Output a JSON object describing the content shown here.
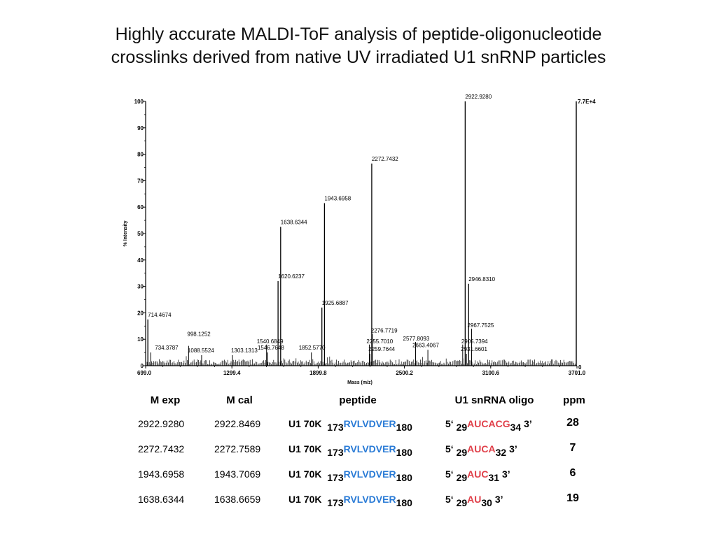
{
  "title": {
    "line1": "Highly accurate MALDI-ToF analysis of peptide-oligonucleotide",
    "line2": "crosslinks derived from native UV irradiated U1 snRNP particles"
  },
  "chart_data": {
    "type": "line",
    "xlabel": "Mass (m/z)",
    "ylabel": "% Intensity",
    "xlim": [
      699.0,
      3701.0
    ],
    "ylim": [
      0,
      100
    ],
    "x_ticks": [
      "699.0",
      "1299.4",
      "1899.8",
      "2500.2",
      "3100.6",
      "3701.0"
    ],
    "y_ticks": [
      0,
      10,
      20,
      30,
      40,
      50,
      60,
      70,
      80,
      90,
      100
    ],
    "max_intensity_label": "7.7E+4",
    "end_value_label": "0",
    "grid": false,
    "peaks": [
      {
        "x": 714.4674,
        "y": 17.5,
        "label": "714.4674"
      },
      {
        "x": 734.3787,
        "y": 5.0,
        "label": "734.3787"
      },
      {
        "x": 998.1252,
        "y": 7.5,
        "label": "998.1252"
      },
      {
        "x": 1088.5524,
        "y": 4.0,
        "label": "1088.5524"
      },
      {
        "x": 1303.1313,
        "y": 4.0,
        "label": "1303.1313"
      },
      {
        "x": 1540.6849,
        "y": 8.0,
        "label": "1540.6849"
      },
      {
        "x": 1546.7648,
        "y": 5.0,
        "label": "1546.7648"
      },
      {
        "x": 1620.6237,
        "y": 32.0,
        "label": "1620.6237"
      },
      {
        "x": 1638.6344,
        "y": 52.5,
        "label": "1638.6344"
      },
      {
        "x": 1852.577,
        "y": 5.0,
        "label": "1852.5770"
      },
      {
        "x": 1925.6887,
        "y": 22.0,
        "label": "1925.6887"
      },
      {
        "x": 1943.6958,
        "y": 61.5,
        "label": "1943.6958"
      },
      {
        "x": 2255.701,
        "y": 8.0,
        "label": "2255.7010"
      },
      {
        "x": 2259.7644,
        "y": 4.5,
        "label": "2259.7644"
      },
      {
        "x": 2272.7432,
        "y": 76.5,
        "label": "2272.7432"
      },
      {
        "x": 2276.7719,
        "y": 12.0,
        "label": "2276.7719"
      },
      {
        "x": 2577.8093,
        "y": 9.0,
        "label": "2577.8093"
      },
      {
        "x": 2663.4067,
        "y": 6.0,
        "label": "2663.4067"
      },
      {
        "x": 2905.7394,
        "y": 8.0,
        "label": "2905.7394"
      },
      {
        "x": 2922.928,
        "y": 100.0,
        "label": "2922.9280"
      },
      {
        "x": 2931.6601,
        "y": 4.5,
        "label": "2931.6601"
      },
      {
        "x": 2946.831,
        "y": 31.0,
        "label": "2946.8310"
      },
      {
        "x": 2967.7525,
        "y": 14.0,
        "label": "2967.7525"
      }
    ]
  },
  "table": {
    "headers": {
      "m_exp": "M exp",
      "m_cal": "M cal",
      "peptide": "peptide",
      "oligo": "U1 snRNA oligo",
      "ppm": "ppm"
    },
    "rows": [
      {
        "m_exp": "2922.9280",
        "m_cal": "2922.8469",
        "protein": "U1 70K",
        "pep_start": "173",
        "pep_seq": "RVLVDVER",
        "pep_end": "180",
        "five": "5‘",
        "oligo_start": "29",
        "oligo_seq": "AUCACG",
        "oligo_end": "34",
        "three": "3’",
        "ppm": "28"
      },
      {
        "m_exp": "2272.7432",
        "m_cal": "2272.7589",
        "protein": "U1 70K",
        "pep_start": "173",
        "pep_seq": "RVLVDVER",
        "pep_end": "180",
        "five": "5‘",
        "oligo_start": "29",
        "oligo_seq": "AUCA",
        "oligo_end": "32",
        "three": "3’",
        "ppm": "7"
      },
      {
        "m_exp": "1943.6958",
        "m_cal": "1943.7069",
        "protein": "U1 70K",
        "pep_start": "173",
        "pep_seq": "RVLVDVER",
        "pep_end": "180",
        "five": "5‘",
        "oligo_start": "29",
        "oligo_seq": "AUC",
        "oligo_end": "31",
        "three": "3’",
        "ppm": "6"
      },
      {
        "m_exp": "1638.6344",
        "m_cal": "1638.6659",
        "protein": "U1 70K",
        "pep_start": "173",
        "pep_seq": "RVLVDVER",
        "pep_end": "180",
        "five": "5‘",
        "oligo_start": "29",
        "oligo_seq": "AU",
        "oligo_end": "30",
        "three": "3’",
        "ppm": "19"
      }
    ]
  },
  "colors": {
    "peptide_sequence": "#2a7bd6",
    "oligo_sequence": "#e0404a",
    "spectrum": "#000000"
  }
}
